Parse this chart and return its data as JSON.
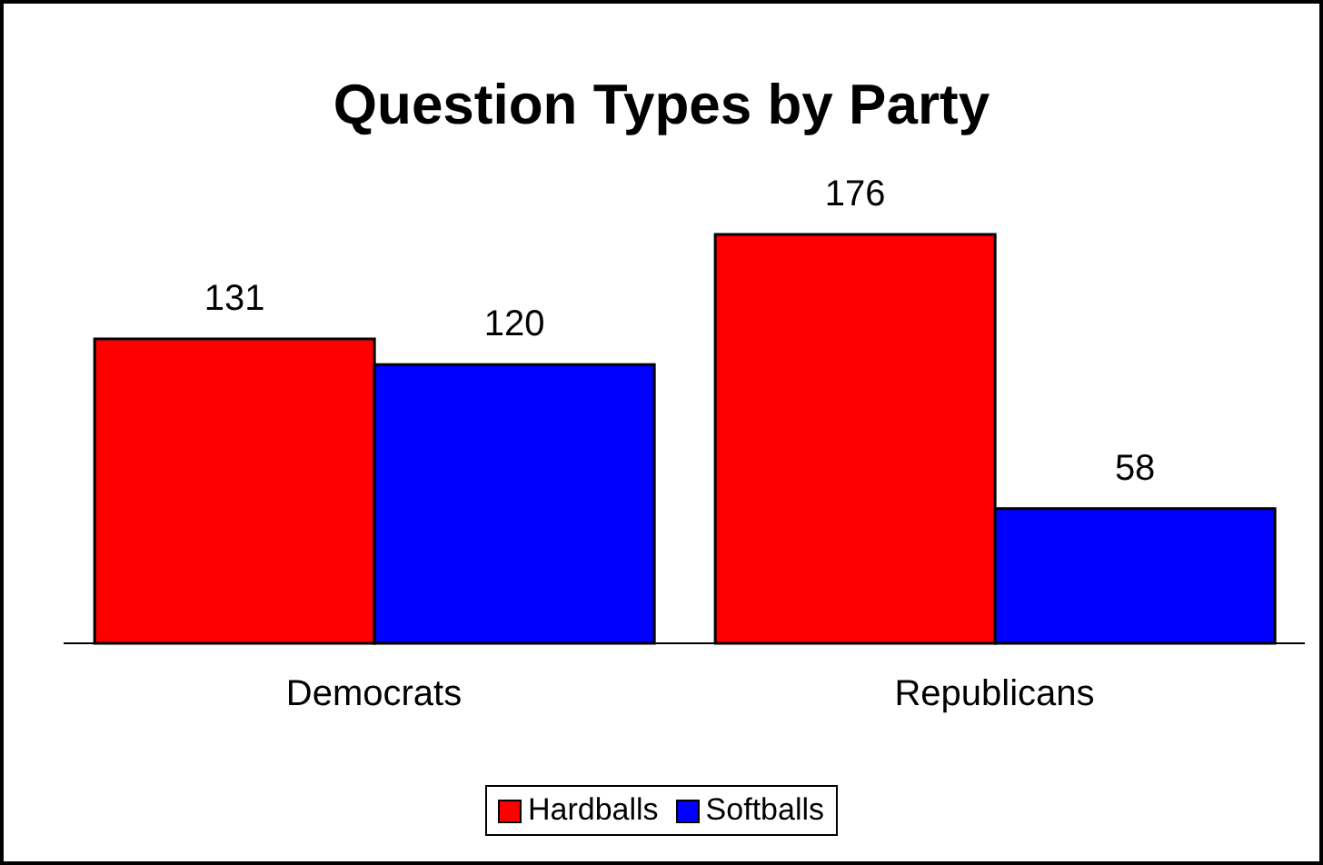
{
  "chart_data": {
    "type": "bar",
    "title": "Question Types by Party",
    "categories": [
      "Democrats",
      "Republicans"
    ],
    "series": [
      {
        "name": "Hardballs",
        "color": "#ff0000",
        "values": [
          131,
          176
        ]
      },
      {
        "name": "Softballs",
        "color": "#0000ff",
        "values": [
          120,
          58
        ]
      }
    ],
    "data_labels": true,
    "legend": "bottom",
    "grid": false
  }
}
